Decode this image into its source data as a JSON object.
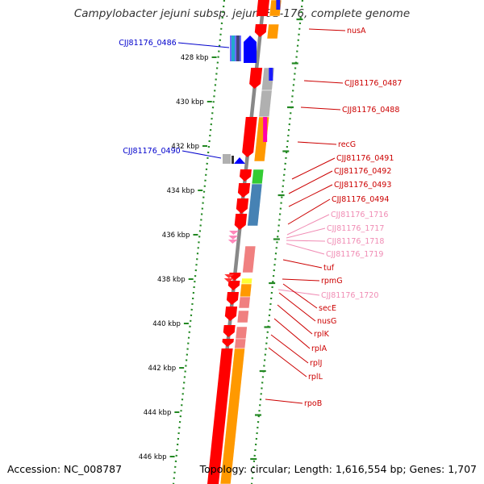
{
  "title": "Campylobacter jejuni subsp. jejuni 81-176, complete genome",
  "footer": {
    "accession": "Accession: NC_008787",
    "summary": "Topology: circular; Length: 1,616,554 bp; Genes: 1,707"
  },
  "ticks": [
    "428 kbp",
    "430 kbp",
    "432 kbp",
    "434 kbp",
    "436 kbp",
    "438 kbp",
    "440 kbp",
    "442 kbp",
    "444 kbp",
    "446 kbp"
  ],
  "left_labels": [
    "CJJ81176_0486",
    "CJJ81176_0490"
  ],
  "right_labels": [
    {
      "text": "nusA",
      "color": "#cc0000"
    },
    {
      "text": "CJJ81176_0487",
      "color": "#cc0000"
    },
    {
      "text": "CJJ81176_0488",
      "color": "#cc0000"
    },
    {
      "text": "recG",
      "color": "#cc0000"
    },
    {
      "text": "CJJ81176_0491",
      "color": "#cc0000"
    },
    {
      "text": "CJJ81176_0492",
      "color": "#cc0000"
    },
    {
      "text": "CJJ81176_0493",
      "color": "#cc0000"
    },
    {
      "text": "CJJ81176_0494",
      "color": "#cc0000"
    },
    {
      "text": "CJJ81176_1716",
      "color": "#f08cb4"
    },
    {
      "text": "CJJ81176_1717",
      "color": "#f08cb4"
    },
    {
      "text": "CJJ81176_1718",
      "color": "#f08cb4"
    },
    {
      "text": "CJJ81176_1719",
      "color": "#f08cb4"
    },
    {
      "text": "tuf",
      "color": "#cc0000"
    },
    {
      "text": "rpmG",
      "color": "#cc0000"
    },
    {
      "text": "CJJ81176_1720",
      "color": "#f08cb4"
    },
    {
      "text": "secE",
      "color": "#cc0000"
    },
    {
      "text": "nusG",
      "color": "#cc0000"
    },
    {
      "text": "rplK",
      "color": "#cc0000"
    },
    {
      "text": "rplA",
      "color": "#cc0000"
    },
    {
      "text": "rplJ",
      "color": "#cc0000"
    },
    {
      "text": "rplL",
      "color": "#cc0000"
    },
    {
      "text": "rpoB",
      "color": "#cc0000"
    }
  ],
  "colors": {
    "forward_cds": "#ff0000",
    "reverse_cds": "#0000ff",
    "label_blue": "#0000cc",
    "label_red": "#cc0000",
    "label_pink": "#f08cb4",
    "backbone": "#888888",
    "gc_dots": "#228822",
    "orange": "#ff9900",
    "gray": "#b0b0b0",
    "green": "#33cc33",
    "steelblue": "#4682b4",
    "salmon": "#f08080",
    "magenta": "#ff33cc",
    "yellow": "#ffff33"
  }
}
